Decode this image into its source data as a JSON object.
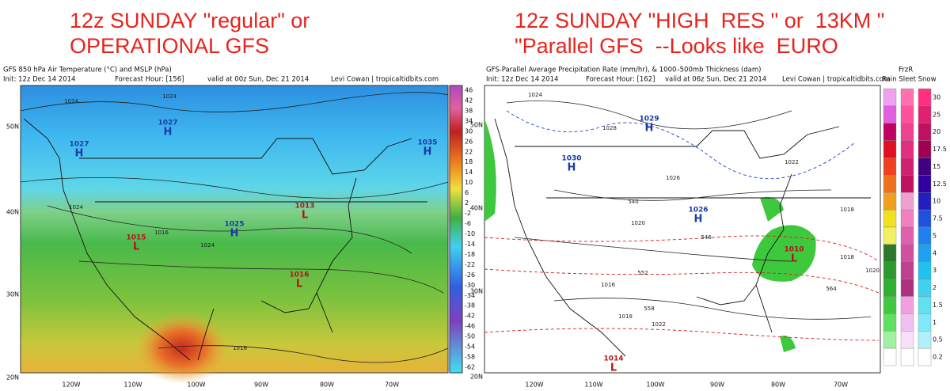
{
  "left": {
    "caption": [
      "12z SUNDAY \"regular\" or",
      "OPERATIONAL GFS"
    ],
    "title": "GFS 850 hPa Air Temperature (°C) and MSLP (hPa)",
    "init": "Init: 12z Dec 14 2014",
    "forecast": "Forecast Hour: [156]",
    "valid": "valid at 00z Sun, Dec 21 2014",
    "credit": "Levi Cowan | tropicaltidbits.com",
    "lat_labels": [
      "50N",
      "40N",
      "30N",
      "20N"
    ],
    "lon_labels": [
      "120W",
      "110W",
      "100W",
      "90W",
      "80W",
      "70W"
    ],
    "colorbar_labels": [
      "46",
      "42",
      "38",
      "34",
      "30",
      "26",
      "22",
      "18",
      "14",
      "10",
      "6",
      "2",
      "-2",
      "-6",
      "-10",
      "-14",
      "-18",
      "-22",
      "-26",
      "-30",
      "-34",
      "-38",
      "-42",
      "-46",
      "-50",
      "-54",
      "-58",
      "-62"
    ],
    "centers": [
      {
        "letter": "H",
        "value": "1027"
      },
      {
        "letter": "H",
        "value": "1027"
      },
      {
        "letter": "H",
        "value": "1035"
      },
      {
        "letter": "H",
        "value": "1025"
      },
      {
        "letter": "L",
        "value": "1013"
      },
      {
        "letter": "L",
        "value": "1015"
      },
      {
        "letter": "L",
        "value": "1016"
      }
    ],
    "contour_labels": [
      "1024",
      "1024",
      "1024",
      "1016",
      "1024",
      "1016"
    ]
  },
  "right": {
    "caption": [
      "12z SUNDAY \"HIGH  RES \" or  13KM \"",
      "\"Parallel GFS  --Looks like  EURO"
    ],
    "title": "GFS-Parallel Average Precipitation Rate (mm/hr), & 1000–500mb Thickness (dam)",
    "init": "Init: 12z Dec 14 2014",
    "forecast": "Forecast Hour: [162]",
    "valid": "valid at 06z Sun, Dec 21 2014",
    "credit": "Levi Cowan | tropicaltidbits.com",
    "lat_labels": [
      "50N",
      "40N",
      "30N",
      "20N"
    ],
    "lon_labels": [
      "120W",
      "110W",
      "100W",
      "90W",
      "80W",
      "70W"
    ],
    "colorbar_header": "FrzR",
    "colorbar_columns": "Rain Sleet Snow",
    "colorbar_labels": [
      "30",
      "25",
      "20",
      "17.5",
      "15",
      "12.5",
      "10",
      "7.5",
      "5",
      "4",
      "3",
      "2",
      "1.5",
      "1",
      "0.5",
      "0.2"
    ],
    "centers": [
      {
        "letter": "H",
        "value": "1029"
      },
      {
        "letter": "H",
        "value": "1030"
      },
      {
        "letter": "H",
        "value": "1026"
      },
      {
        "letter": "L",
        "value": "1010"
      },
      {
        "letter": "L",
        "value": "1014"
      }
    ],
    "contour_labels": [
      "1024",
      "1028",
      "1022",
      "1018",
      "1026",
      "1020",
      "1016",
      "1018",
      "1022",
      "546",
      "552",
      "558",
      "564",
      "540",
      "1020",
      "1018"
    ]
  }
}
